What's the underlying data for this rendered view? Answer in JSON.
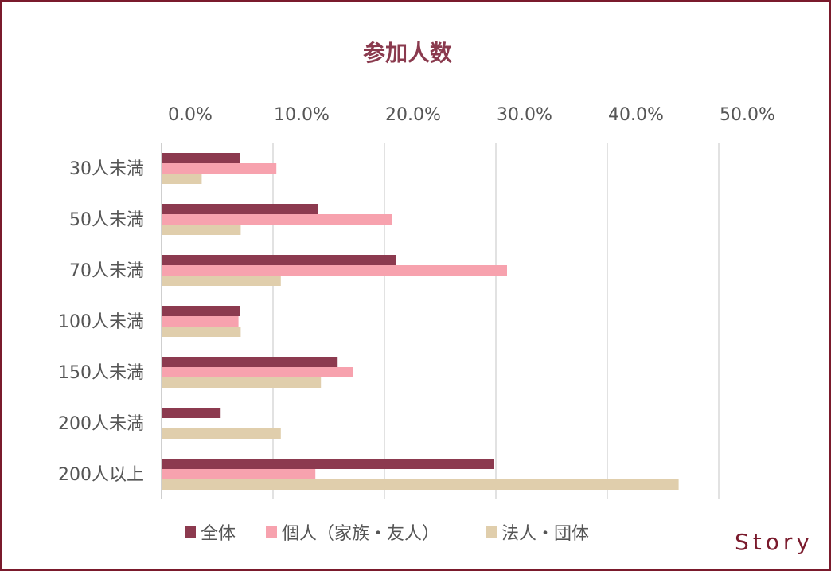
{
  "chart_data": {
    "type": "bar",
    "orientation": "horizontal",
    "title": "参加人数",
    "categories": [
      "30人未満",
      "50人未満",
      "70人未満",
      "100人未満",
      "150人未満",
      "200人未満",
      "200人以上"
    ],
    "series": [
      {
        "name": "全体",
        "color": "#8c3a4f",
        "values": [
          7.0,
          14.0,
          21.0,
          7.0,
          15.8,
          5.3,
          29.8
        ]
      },
      {
        "name": "個人（家族・友人）",
        "color": "#f7a2ae",
        "values": [
          10.3,
          20.7,
          31.0,
          6.9,
          17.2,
          0.0,
          13.8
        ]
      },
      {
        "name": "法人・団体",
        "color": "#e0ceac",
        "values": [
          3.6,
          7.1,
          10.7,
          7.1,
          14.3,
          10.7,
          46.4
        ]
      }
    ],
    "x_ticks": [
      "0.0%",
      "10.0%",
      "20.0%",
      "30.0%",
      "40.0%",
      "50.0%"
    ],
    "xlim": [
      0,
      50
    ],
    "x_axis_position": "top",
    "grid": true,
    "legend_position": "bottom"
  },
  "brand": {
    "logo_text": "Story",
    "color": "#7a1a2c"
  }
}
